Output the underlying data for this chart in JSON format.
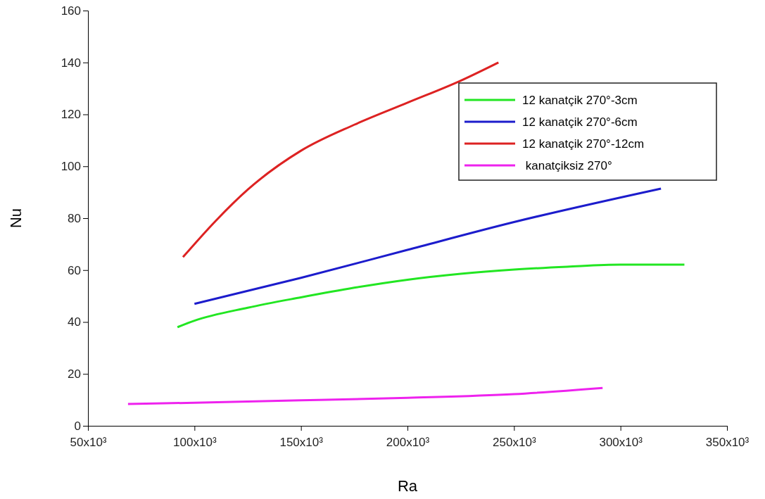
{
  "chart_data": {
    "type": "line",
    "xlabel": "Ra",
    "ylabel": "Nu",
    "xlim": [
      50000,
      350000
    ],
    "xticks": [
      {
        "value": 50000,
        "label": "50x10³"
      },
      {
        "value": 100000,
        "label": "100x10³"
      },
      {
        "value": 150000,
        "label": "150x10³"
      },
      {
        "value": 200000,
        "label": "200x10³"
      },
      {
        "value": 250000,
        "label": "250x10³"
      },
      {
        "value": 300000,
        "label": "300x10³"
      },
      {
        "value": 350000,
        "label": "350x10³"
      }
    ],
    "ylim": [
      0,
      160
    ],
    "yticks": [
      0,
      20,
      40,
      60,
      80,
      100,
      120,
      140,
      160
    ],
    "grid": false,
    "legend": "top right",
    "marker": "none",
    "line_style": "solid",
    "series": [
      {
        "name": "12 kanatçik 270°-3cm",
        "color": "#22e622",
        "x": [
          92000,
          100000,
          125000,
          150000,
          175000,
          200000,
          225000,
          250000,
          275000,
          300000,
          330000
        ],
        "values": [
          38,
          40.5,
          45.5,
          49.5,
          53.2,
          56.3,
          58.6,
          60.2,
          61.3,
          62.1,
          62.1
        ]
      },
      {
        "name": "12 kanatçik 270°-6cm",
        "color": "#1c1ccc",
        "x": [
          100000,
          150000,
          200000,
          250000,
          319000
        ],
        "values": [
          47,
          57,
          67.8,
          78.5,
          91.4
        ]
      },
      {
        "name": "12 kanatçik 270°-12cm",
        "color": "#dd2222",
        "x": [
          94600,
          110000,
          125000,
          150000,
          175000,
          200000,
          225000,
          242700
        ],
        "values": [
          65,
          79,
          91,
          106,
          116,
          124.5,
          133,
          140
        ]
      },
      {
        "name": " kanatçiksiz 270°",
        "color": "#ee22ee",
        "x": [
          68800,
          100000,
          150000,
          200000,
          250000,
          291600
        ],
        "values": [
          8.4,
          8.9,
          9.8,
          10.8,
          12.2,
          14.6
        ]
      }
    ]
  }
}
